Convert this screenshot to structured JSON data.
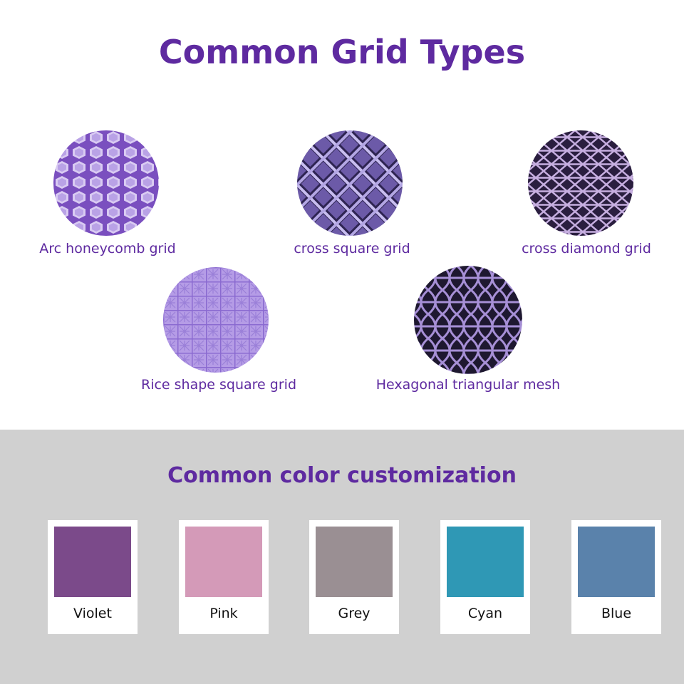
{
  "title": "Common Grid Types",
  "grids": [
    {
      "label": "Arc honeycomb grid",
      "icon": "honeycomb-pattern"
    },
    {
      "label": "cross square grid",
      "icon": "cross-square-pattern"
    },
    {
      "label": "cross diamond grid",
      "icon": "cross-diamond-pattern"
    },
    {
      "label": "Rice shape square grid",
      "icon": "rice-square-pattern"
    },
    {
      "label": "Hexagonal triangular mesh",
      "icon": "hex-triangle-pattern"
    }
  ],
  "colors_title": "Common color customization",
  "colors": [
    {
      "name": "Violet",
      "hex": "#7b4a8a"
    },
    {
      "name": "Pink",
      "hex": "#d49ab8"
    },
    {
      "name": "Grey",
      "hex": "#9a8f93"
    },
    {
      "name": "Cyan",
      "hex": "#2f98b5"
    },
    {
      "name": "Blue",
      "hex": "#5a82ab"
    }
  ],
  "accent": "#5e2aa0"
}
